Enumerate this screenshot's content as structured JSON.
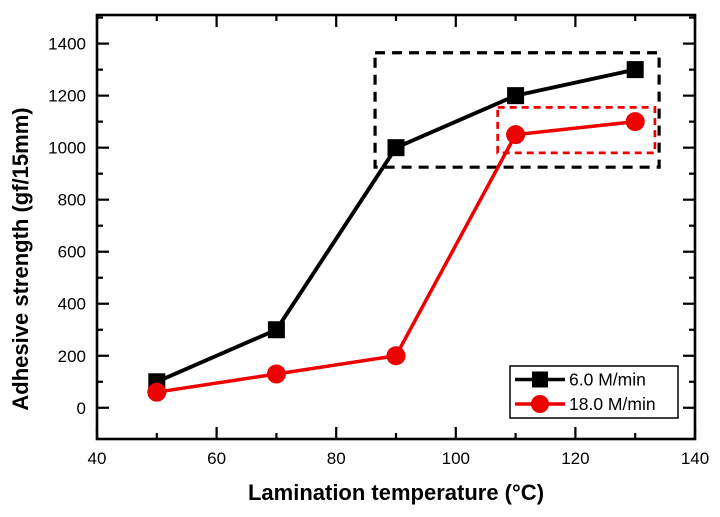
{
  "chart_data": {
    "type": "line",
    "title": "",
    "xlabel": "Lamination temperature (°C)",
    "ylabel": "Adhesive strength (gf/15mm)",
    "x": [
      50,
      70,
      90,
      110,
      130
    ],
    "series": [
      {
        "name": "6.0 M/min",
        "color": "#000000",
        "marker": "square",
        "values": [
          100,
          300,
          1000,
          1200,
          1300
        ]
      },
      {
        "name": "18.0 M/min",
        "color": "#ee0000",
        "marker": "circle",
        "values": [
          60,
          130,
          200,
          1050,
          1100
        ]
      }
    ],
    "xlim": [
      40,
      140
    ],
    "ylim": [
      -120,
      1510
    ],
    "xticks": [
      40,
      60,
      80,
      100,
      120,
      140
    ],
    "minor_xticks": [
      50,
      70,
      90,
      110,
      130
    ],
    "yticks": [
      0,
      200,
      400,
      600,
      800,
      1000,
      1200,
      1400
    ],
    "minor_yticks": [
      100,
      300,
      500,
      700,
      900,
      1100,
      1300,
      1500
    ],
    "grid": false,
    "legend": {
      "position": "lower-right",
      "border": true,
      "entries": [
        "6.0 M/min",
        "18.0 M/min"
      ]
    },
    "annotations": [
      {
        "type": "dashed-box",
        "color": "#000000",
        "x0": 86.5,
        "x1": 134.0,
        "y0": 925,
        "y1": 1365
      },
      {
        "type": "dashed-box",
        "color": "#ee0000",
        "x0": 107.0,
        "x1": 133.3,
        "y0": 980,
        "y1": 1155
      }
    ]
  }
}
